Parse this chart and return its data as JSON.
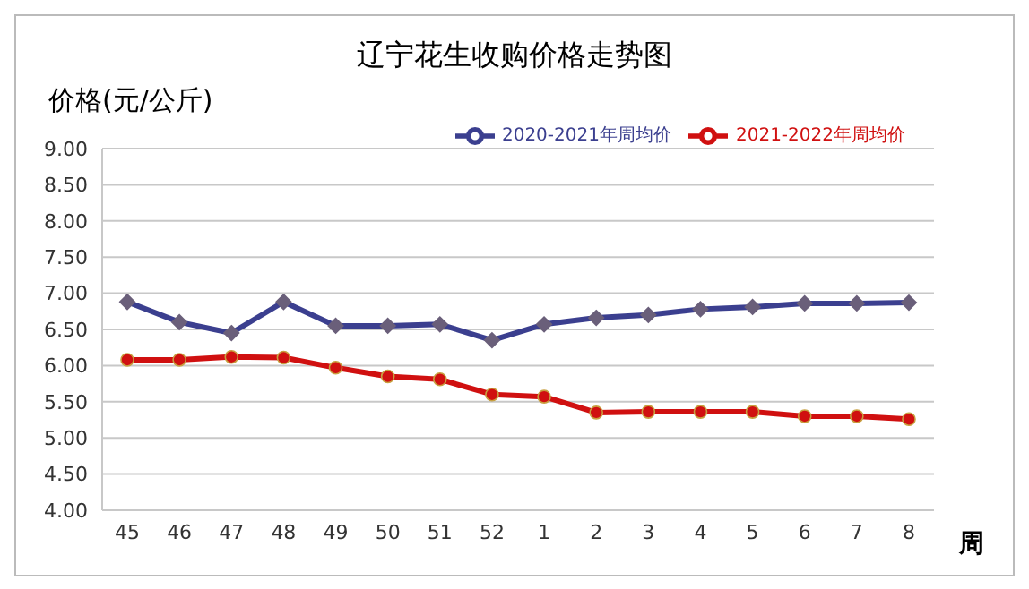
{
  "chart_data": {
    "type": "line",
    "title": "辽宁花生收购价格走势图",
    "ylabel": "价格(元/公斤)",
    "xlabel": "周",
    "categories": [
      "45",
      "46",
      "47",
      "48",
      "49",
      "50",
      "51",
      "52",
      "1",
      "2",
      "3",
      "4",
      "5",
      "6",
      "7",
      "8"
    ],
    "series": [
      {
        "name": "2020-2021年周均价",
        "color": "#3b3f8f",
        "marker": "diamond",
        "values": [
          6.88,
          6.6,
          6.45,
          6.88,
          6.55,
          6.55,
          6.57,
          6.35,
          6.57,
          6.66,
          6.7,
          6.78,
          6.81,
          6.86,
          6.86,
          6.87
        ]
      },
      {
        "name": "2021-2022年周均价",
        "color": "#d01010",
        "marker": "circle",
        "values": [
          6.08,
          6.08,
          6.12,
          6.11,
          5.97,
          5.85,
          5.81,
          5.6,
          5.57,
          5.35,
          5.36,
          5.36,
          5.36,
          5.3,
          5.3,
          5.26
        ]
      }
    ],
    "ylim": [
      4,
      9
    ],
    "yticks": [
      {
        "value": 4,
        "label": "4.00"
      },
      {
        "value": 4.5,
        "label": "4.50"
      },
      {
        "value": 5,
        "label": "5.00"
      },
      {
        "value": 5.5,
        "label": "5.50"
      },
      {
        "value": 6,
        "label": "6.00"
      },
      {
        "value": 6.5,
        "label": "6.50"
      },
      {
        "value": 7,
        "label": "7.00"
      },
      {
        "value": 7.5,
        "label": "7.50"
      },
      {
        "value": 8,
        "label": "8.00"
      },
      {
        "value": 8.5,
        "label": "8.50"
      },
      {
        "value": 9,
        "label": "9.00"
      }
    ],
    "grid": "y",
    "legend": "top right",
    "line_style": "solid"
  }
}
